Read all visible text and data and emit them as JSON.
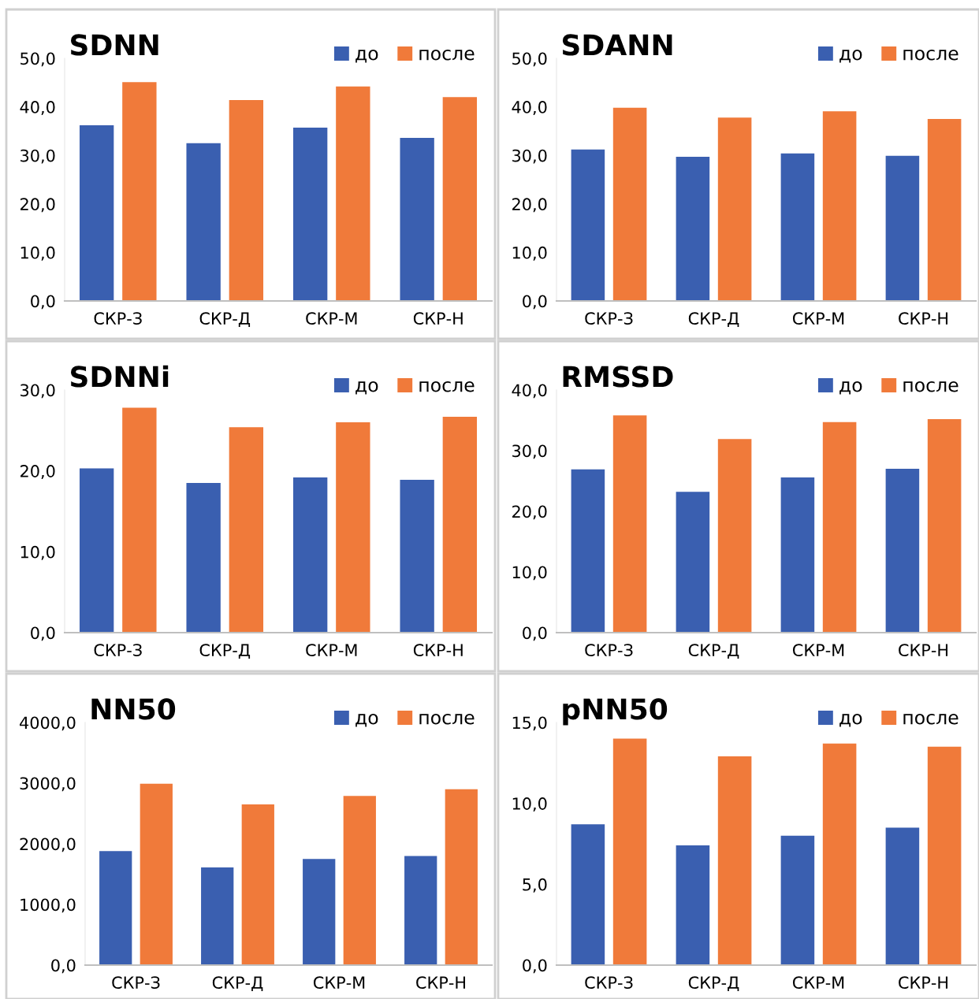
{
  "chart_data": [
    {
      "type": "bar",
      "title": "SDNN",
      "categories": [
        "СКР-З",
        "СКР-Д",
        "СКР-М",
        "СКР-Н"
      ],
      "legend": "top right",
      "ylim": [
        0,
        50
      ],
      "yticks": [
        {
          "value": 0,
          "label": "0,0"
        },
        {
          "value": 10,
          "label": "10,0"
        },
        {
          "value": 20,
          "label": "20,0"
        },
        {
          "value": 30,
          "label": "30,0"
        },
        {
          "value": 40,
          "label": "40,0"
        },
        {
          "value": 50,
          "label": "50,0"
        }
      ],
      "series": [
        {
          "name": "до",
          "color": "#3a5fb0",
          "values": [
            36.2,
            32.5,
            35.7,
            33.6
          ]
        },
        {
          "name": "после",
          "color": "#f07a3a",
          "values": [
            45.1,
            41.4,
            44.2,
            42.0
          ]
        }
      ]
    },
    {
      "type": "bar",
      "title": "SDANN",
      "categories": [
        "СКР-З",
        "СКР-Д",
        "СКР-М",
        "СКР-Н"
      ],
      "legend": "top right",
      "ylim": [
        0,
        50
      ],
      "yticks": [
        {
          "value": 0,
          "label": "0,0"
        },
        {
          "value": 10,
          "label": "10,0"
        },
        {
          "value": 20,
          "label": "20,0"
        },
        {
          "value": 30,
          "label": "30,0"
        },
        {
          "value": 40,
          "label": "40,0"
        },
        {
          "value": 50,
          "label": "50,0"
        }
      ],
      "series": [
        {
          "name": "до",
          "color": "#3a5fb0",
          "values": [
            31.2,
            29.7,
            30.4,
            29.9
          ]
        },
        {
          "name": "после",
          "color": "#f07a3a",
          "values": [
            39.8,
            37.8,
            39.1,
            37.5
          ]
        }
      ]
    },
    {
      "type": "bar",
      "title": "SDNNi",
      "categories": [
        "СКР-З",
        "СКР-Д",
        "СКР-М",
        "СКР-Н"
      ],
      "legend": "top right",
      "ylim": [
        0,
        30
      ],
      "yticks": [
        {
          "value": 0,
          "label": "0,0"
        },
        {
          "value": 10,
          "label": "10,0"
        },
        {
          "value": 20,
          "label": "20,0"
        },
        {
          "value": 30,
          "label": "30,0"
        }
      ],
      "series": [
        {
          "name": "до",
          "color": "#3a5fb0",
          "values": [
            20.3,
            18.5,
            19.2,
            18.9
          ]
        },
        {
          "name": "после",
          "color": "#f07a3a",
          "values": [
            27.8,
            25.4,
            26.0,
            26.7
          ]
        }
      ]
    },
    {
      "type": "bar",
      "title": "RMSSD",
      "categories": [
        "СКР-З",
        "СКР-Д",
        "СКР-М",
        "СКР-Н"
      ],
      "legend": "top right",
      "ylim": [
        0,
        40
      ],
      "yticks": [
        {
          "value": 0,
          "label": "0,0"
        },
        {
          "value": 10,
          "label": "10,0"
        },
        {
          "value": 20,
          "label": "20,0"
        },
        {
          "value": 30,
          "label": "30,0"
        },
        {
          "value": 40,
          "label": "40,0"
        }
      ],
      "series": [
        {
          "name": "до",
          "color": "#3a5fb0",
          "values": [
            26.9,
            23.2,
            25.6,
            27.0
          ]
        },
        {
          "name": "после",
          "color": "#f07a3a",
          "values": [
            35.8,
            31.9,
            34.7,
            35.2
          ]
        }
      ]
    },
    {
      "type": "bar",
      "title": "NN50",
      "categories": [
        "СКР-З",
        "СКР-Д",
        "СКР-М",
        "СКР-Н"
      ],
      "legend": "top right",
      "ylim": [
        0,
        4000
      ],
      "yticks": [
        {
          "value": 0,
          "label": "0,0"
        },
        {
          "value": 1000,
          "label": "1000,0"
        },
        {
          "value": 2000,
          "label": "2000,0"
        },
        {
          "value": 3000,
          "label": "3000,0"
        },
        {
          "value": 4000,
          "label": "4000,0"
        }
      ],
      "series": [
        {
          "name": "до",
          "color": "#3a5fb0",
          "values": [
            1880,
            1610,
            1750,
            1800
          ]
        },
        {
          "name": "после",
          "color": "#f07a3a",
          "values": [
            2990,
            2650,
            2790,
            2900
          ]
        }
      ]
    },
    {
      "type": "bar",
      "title": "pNN50",
      "categories": [
        "СКР-З",
        "СКР-Д",
        "СКР-М",
        "СКР-Н"
      ],
      "legend": "top right",
      "ylim": [
        0,
        15
      ],
      "yticks": [
        {
          "value": 0,
          "label": "0,0"
        },
        {
          "value": 5,
          "label": "5,0"
        },
        {
          "value": 10,
          "label": "10,0"
        },
        {
          "value": 15,
          "label": "15,0"
        }
      ],
      "series": [
        {
          "name": "до",
          "color": "#3a5fb0",
          "values": [
            8.7,
            7.4,
            8.0,
            8.5
          ]
        },
        {
          "name": "после",
          "color": "#f07a3a",
          "values": [
            14.0,
            12.9,
            13.7,
            13.5
          ]
        }
      ]
    }
  ]
}
